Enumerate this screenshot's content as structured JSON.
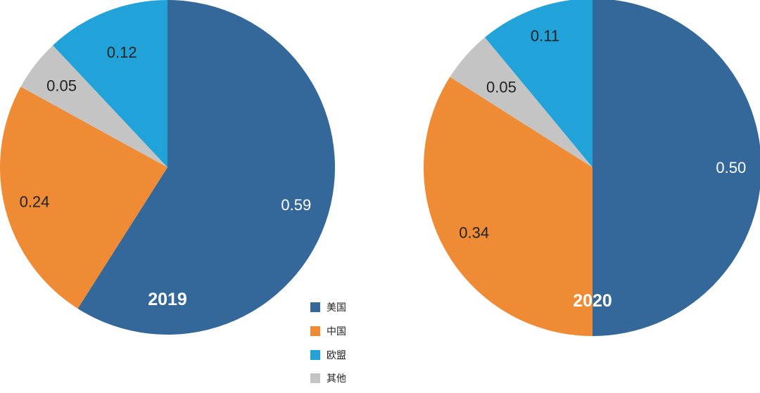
{
  "chart_data": [
    {
      "type": "pie",
      "title": "2019",
      "categories": [
        "美国",
        "中国",
        "其他",
        "欧盟"
      ],
      "values": [
        0.59,
        0.24,
        0.05,
        0.12
      ],
      "labels": [
        "0.59",
        "0.24",
        "0.05",
        "0.12"
      ],
      "start": "12 o'clock",
      "direction": "clockwise"
    },
    {
      "type": "pie",
      "title": "2020",
      "categories": [
        "美国",
        "中国",
        "其他",
        "欧盟"
      ],
      "values": [
        0.5,
        0.34,
        0.05,
        0.11
      ],
      "labels": [
        "0.50",
        "0.34",
        "0.05",
        "0.11"
      ],
      "start": "12 o'clock",
      "direction": "clockwise"
    }
  ],
  "legend": {
    "placement": "bottom-center",
    "items": [
      {
        "label": "美国",
        "color": "#35689a"
      },
      {
        "label": "中国",
        "color": "#ef8b35"
      },
      {
        "label": "欧盟",
        "color": "#21a2d8"
      },
      {
        "label": "其他",
        "color": "#c4c4c4"
      }
    ]
  },
  "colors": {
    "美国": "#35689a",
    "中国": "#ef8b35",
    "欧盟": "#21a2d8",
    "其他": "#c4c4c4",
    "label_light": "#ffffff",
    "label_dark": "#222222"
  }
}
